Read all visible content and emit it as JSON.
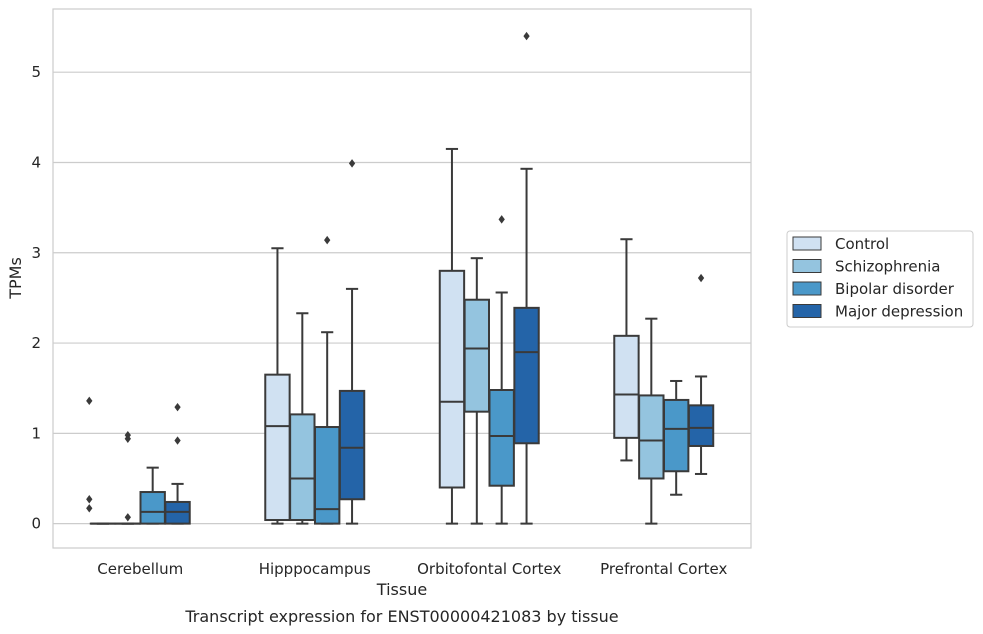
{
  "chart_data": {
    "type": "box",
    "title": "",
    "caption": "Transcript expression for ENST00000421083 by tissue",
    "xlabel": "Tissue",
    "ylabel": "TPMs",
    "ylim": [
      -0.27,
      5.7
    ],
    "yticks": [
      0,
      1,
      2,
      3,
      4,
      5
    ],
    "grid": "horizontal",
    "legend_position": "right",
    "categories": [
      "Cerebellum",
      "Hipppocampus",
      "Orbitofontal Cortex",
      "Prefrontal Cortex"
    ],
    "series": [
      {
        "name": "Control",
        "color": "#d0e1f2",
        "boxes": [
          {
            "whisker_low": 0,
            "q1": 0,
            "median": 0,
            "q3": 0,
            "whisker_high": 0,
            "outliers": []
          },
          {
            "whisker_low": 0,
            "q1": 0.04,
            "median": 1.08,
            "q3": 1.65,
            "whisker_high": 3.05,
            "outliers": []
          },
          {
            "whisker_low": 0,
            "q1": 0.4,
            "median": 1.35,
            "q3": 2.8,
            "whisker_high": 4.15,
            "outliers": []
          },
          {
            "whisker_low": 0.7,
            "q1": 0.95,
            "median": 1.43,
            "q3": 2.08,
            "whisker_high": 3.15,
            "outliers": []
          }
        ]
      },
      {
        "name": "Schizophrenia",
        "color": "#94c4df",
        "boxes": [
          {
            "whisker_low": 0,
            "q1": 0,
            "median": 0,
            "q3": 0,
            "whisker_high": 0,
            "outliers": [
              0.98,
              0.94,
              0.07
            ]
          },
          {
            "whisker_low": 0,
            "q1": 0.04,
            "median": 0.5,
            "q3": 1.21,
            "whisker_high": 2.33,
            "outliers": []
          },
          {
            "whisker_low": 0,
            "q1": 1.24,
            "median": 1.94,
            "q3": 2.48,
            "whisker_high": 2.94,
            "outliers": []
          },
          {
            "whisker_low": 0,
            "q1": 0.5,
            "median": 0.92,
            "q3": 1.42,
            "whisker_high": 2.27,
            "outliers": []
          }
        ]
      },
      {
        "name": "Bipolar disorder",
        "color": "#4a98c9",
        "boxes": [
          {
            "whisker_low": 0,
            "q1": 0,
            "median": 0.13,
            "q3": 0.35,
            "whisker_high": 0.62,
            "outliers": []
          },
          {
            "whisker_low": 0,
            "q1": 0,
            "median": 0.16,
            "q3": 1.07,
            "whisker_high": 2.12,
            "outliers": [
              3.14
            ]
          },
          {
            "whisker_low": 0,
            "q1": 0.42,
            "median": 0.97,
            "q3": 1.48,
            "whisker_high": 2.56,
            "outliers": [
              3.37
            ]
          },
          {
            "whisker_low": 0.32,
            "q1": 0.58,
            "median": 1.05,
            "q3": 1.37,
            "whisker_high": 1.58,
            "outliers": []
          }
        ]
      },
      {
        "name": "Major depression",
        "color": "#2464a8",
        "boxes": [
          {
            "whisker_low": 0,
            "q1": 0,
            "median": 0.13,
            "q3": 0.24,
            "whisker_high": 0.44,
            "outliers": [
              1.29,
              0.92
            ]
          },
          {
            "whisker_low": 0,
            "q1": 0.27,
            "median": 0.84,
            "q3": 1.47,
            "whisker_high": 2.6,
            "outliers": [
              3.99
            ]
          },
          {
            "whisker_low": 0,
            "q1": 0.89,
            "median": 1.9,
            "q3": 2.39,
            "whisker_high": 3.93,
            "outliers": [
              5.4
            ]
          },
          {
            "whisker_low": 0.55,
            "q1": 0.86,
            "median": 1.06,
            "q3": 1.31,
            "whisker_high": 1.63,
            "outliers": [
              2.72
            ]
          }
        ]
      }
    ],
    "extra_outliers": [
      {
        "category": "Cerebellum",
        "position": "left",
        "values": [
          1.36,
          0.27,
          0.17
        ]
      }
    ]
  }
}
